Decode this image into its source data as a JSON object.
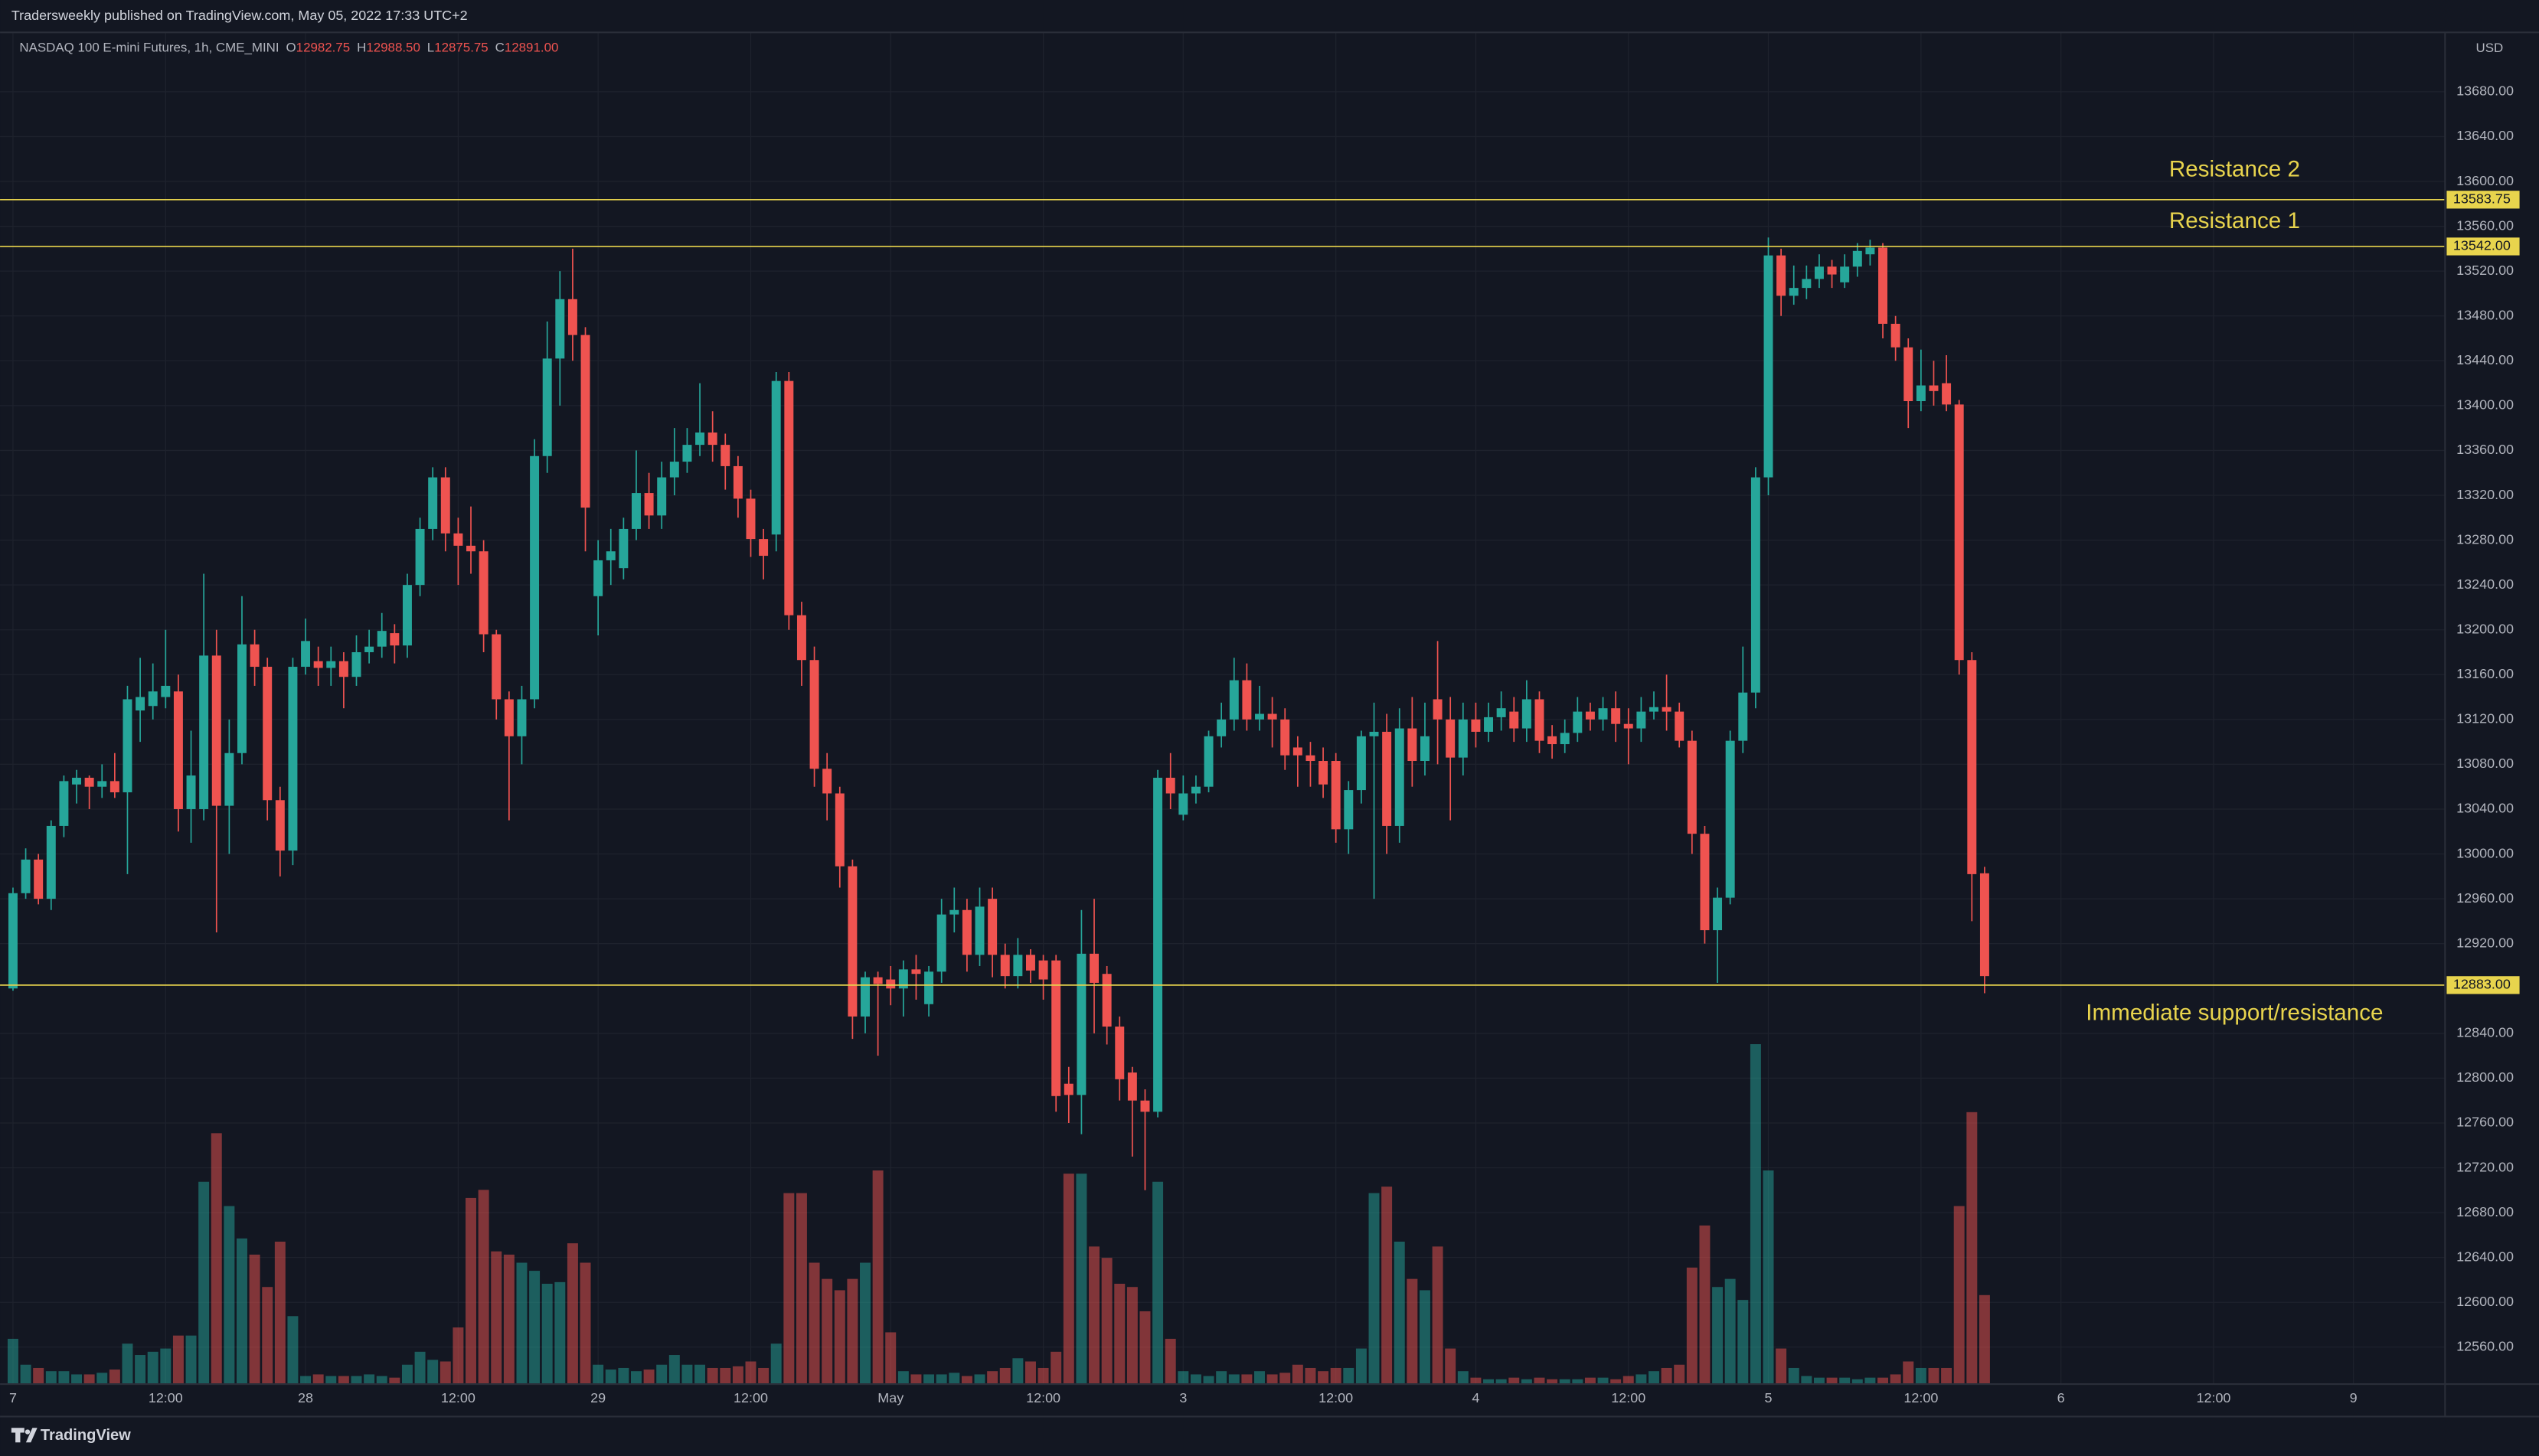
{
  "header": {
    "publisher": "Tradersweekly published on TradingView.com, May 05, 2022 17:33 UTC+2"
  },
  "footer": {
    "brand": "TradingView"
  },
  "chart_data": {
    "type": "candlestick",
    "legend": {
      "symbol": "NASDAQ 100 E-mini Futures, 1h, CME_MINI",
      "o_key": "O",
      "o": "12982.75",
      "h_key": "H",
      "h": "12988.50",
      "l_key": "L",
      "l": "12875.75",
      "c_key": "C",
      "c": "12891.00"
    },
    "currency": "USD",
    "up_color": "#26a69a",
    "down_color": "#ef5350",
    "ylim": [
      12527,
      13733
    ],
    "yticks": [
      {
        "value": 12560,
        "label": "12560.00"
      },
      {
        "value": 12600,
        "label": "12600.00"
      },
      {
        "value": 12640,
        "label": "12640.00"
      },
      {
        "value": 12680,
        "label": "12680.00"
      },
      {
        "value": 12720,
        "label": "12720.00"
      },
      {
        "value": 12760,
        "label": "12760.00"
      },
      {
        "value": 12800,
        "label": "12800.00"
      },
      {
        "value": 12840,
        "label": "12840.00"
      },
      {
        "value": 12920,
        "label": "12920.00"
      },
      {
        "value": 12960,
        "label": "12960.00"
      },
      {
        "value": 13000,
        "label": "13000.00"
      },
      {
        "value": 13040,
        "label": "13040.00"
      },
      {
        "value": 13080,
        "label": "13080.00"
      },
      {
        "value": 13120,
        "label": "13120.00"
      },
      {
        "value": 13160,
        "label": "13160.00"
      },
      {
        "value": 13200,
        "label": "13200.00"
      },
      {
        "value": 13240,
        "label": "13240.00"
      },
      {
        "value": 13280,
        "label": "13280.00"
      },
      {
        "value": 13320,
        "label": "13320.00"
      },
      {
        "value": 13360,
        "label": "13360.00"
      },
      {
        "value": 13400,
        "label": "13400.00"
      },
      {
        "value": 13440,
        "label": "13440.00"
      },
      {
        "value": 13480,
        "label": "13480.00"
      },
      {
        "value": 13520,
        "label": "13520.00"
      },
      {
        "value": 13560,
        "label": "13560.00"
      },
      {
        "value": 13600,
        "label": "13600.00"
      },
      {
        "value": 13640,
        "label": "13640.00"
      },
      {
        "value": 13680,
        "label": "13680.00"
      }
    ],
    "grid": true,
    "hlines": [
      {
        "value": 13583.75,
        "label": "13583.75",
        "text": "Resistance 2"
      },
      {
        "value": 13542,
        "label": "13542.00",
        "text": "Resistance 1"
      },
      {
        "value": 12883,
        "label": "12883.00",
        "text": "Immediate support/resistance"
      }
    ],
    "hline_color": "#e8d44d",
    "categories": [
      "7",
      null,
      null,
      null,
      null,
      null,
      null,
      null,
      null,
      null,
      null,
      null,
      "12:00",
      null,
      null,
      null,
      null,
      null,
      null,
      null,
      null,
      null,
      null,
      "28",
      null,
      null,
      null,
      null,
      null,
      null,
      null,
      null,
      null,
      null,
      null,
      "12:00",
      null,
      null,
      null,
      null,
      null,
      null,
      null,
      null,
      null,
      null,
      "29",
      null,
      null,
      null,
      null,
      null,
      null,
      null,
      null,
      null,
      null,
      null,
      "12:00",
      null,
      null,
      null,
      null,
      null,
      null,
      null,
      null,
      null,
      null,
      "May",
      null,
      null,
      null,
      null,
      null,
      null,
      null,
      null,
      null,
      null,
      null,
      "12:00",
      null,
      null,
      null,
      null,
      null,
      null,
      null,
      null,
      null,
      null,
      "3",
      null,
      null,
      null,
      null,
      null,
      null,
      null,
      null,
      null,
      null,
      null,
      "12:00",
      null,
      null,
      null,
      null,
      null,
      null,
      null,
      null,
      null,
      null,
      "4",
      null,
      null,
      null,
      null,
      null,
      null,
      null,
      null,
      null,
      null,
      null,
      "12:00",
      null,
      null,
      null,
      null,
      null,
      null,
      null,
      null,
      null,
      null,
      "5",
      null,
      null,
      null,
      null,
      null,
      null,
      null,
      null,
      null,
      null,
      null,
      "12:00",
      null,
      null,
      null,
      null,
      null,
      null,
      null,
      null,
      null,
      null,
      "6",
      null,
      null,
      null,
      null,
      null,
      null,
      null,
      null,
      null,
      null,
      null,
      "12:00",
      null,
      null,
      null,
      null,
      null,
      null,
      null,
      null,
      null,
      null,
      "9",
      null,
      null,
      null,
      null,
      null,
      null,
      null
    ],
    "open": [
      12880,
      12965,
      12995,
      12960,
      13025,
      13062,
      13068,
      13060,
      13065,
      13055,
      13128,
      13132,
      13140,
      13145,
      13040,
      13040,
      13177,
      13043,
      13090,
      13187,
      13167,
      13048,
      13003,
      13167,
      13172,
      13166,
      13172,
      13158,
      13180,
      13185,
      13197,
      13186,
      13240,
      13290,
      13336,
      13286,
      13275,
      13270,
      13196,
      13138,
      13105,
      13138,
      13355,
      13442,
      13495,
      13463,
      13230,
      13262,
      13255,
      13290,
      13322,
      13302,
      13336,
      13350,
      13365,
      13376,
      13365,
      13346,
      13317,
      13281,
      13285,
      13422,
      13213,
      13173,
      13076,
      13054,
      12989,
      12855,
      12890,
      12888,
      12880,
      12897,
      12866,
      12895,
      12946,
      12950,
      12910,
      12960,
      12910,
      12891,
      12910,
      12905,
      12905,
      12795,
      12785,
      12911,
      12893,
      12846,
      12805,
      12780,
      12770,
      13068,
      13035,
      13054,
      13060,
      13105,
      13120,
      13155,
      13120,
      13125,
      13120,
      13095,
      13088,
      13083,
      13083,
      13022,
      13057,
      13105,
      13109,
      13025,
      13112,
      13083,
      13138,
      13120,
      13086,
      13120,
      13109,
      13122,
      13127,
      13112,
      13138,
      13105,
      13098,
      13108,
      13127,
      13120,
      13130,
      13116,
      13112,
      13127,
      13131,
      13127,
      13101,
      13018,
      12932,
      12961,
      13101,
      13144,
      13336,
      13534,
      13498,
      13505,
      13513,
      13524,
      13510,
      13524,
      13535,
      13541,
      13473,
      13452,
      13404,
      13418,
      13420,
      13401,
      13173,
      12982.75,
      null,
      null,
      null,
      null,
      null,
      null,
      null,
      null,
      null,
      null,
      null,
      null,
      null,
      null,
      null,
      null,
      null,
      null,
      null,
      null,
      null,
      null,
      null,
      null,
      null,
      null,
      null,
      null,
      null,
      null,
      null,
      null,
      null,
      null,
      null,
      null
    ],
    "high": [
      12970,
      13005,
      13000,
      13030,
      13070,
      13075,
      13070,
      13080,
      13090,
      13150,
      13175,
      13170,
      13200,
      13160,
      13110,
      13250,
      13200,
      13120,
      13230,
      13200,
      13175,
      13060,
      13175,
      13210,
      13185,
      13185,
      13180,
      13195,
      13200,
      13215,
      13205,
      13250,
      13300,
      13345,
      13345,
      13300,
      13310,
      13280,
      13200,
      13145,
      13150,
      13370,
      13475,
      13520,
      13540,
      13470,
      13280,
      13290,
      13300,
      13360,
      13340,
      13350,
      13380,
      13380,
      13420,
      13395,
      13375,
      13355,
      13325,
      13290,
      13430,
      13430,
      13225,
      13185,
      13090,
      13060,
      12995,
      12895,
      12895,
      12900,
      12905,
      12910,
      12900,
      12960,
      12970,
      12960,
      12970,
      12970,
      12920,
      12925,
      12915,
      12910,
      12910,
      12810,
      12950,
      12960,
      12900,
      12855,
      12810,
      12790,
      13075,
      13090,
      13070,
      13070,
      13110,
      13135,
      13175,
      13170,
      13150,
      13140,
      13130,
      13105,
      13100,
      13095,
      13090,
      13065,
      13110,
      13135,
      13125,
      13130,
      13140,
      13135,
      13190,
      13140,
      13135,
      13135,
      13135,
      13145,
      13140,
      13155,
      13145,
      13115,
      13120,
      13140,
      13135,
      13140,
      13145,
      13130,
      13140,
      13145,
      13160,
      13135,
      13110,
      13025,
      12970,
      13110,
      13185,
      13345,
      13550,
      13540,
      13525,
      13525,
      13535,
      13530,
      13535,
      13545,
      13548,
      13545,
      13480,
      13460,
      13450,
      13440,
      13445,
      13405,
      13180,
      12988.5,
      null,
      null,
      null,
      null,
      null,
      null,
      null,
      null,
      null,
      null,
      null,
      null,
      null,
      null,
      null,
      null,
      null,
      null,
      null,
      null,
      null,
      null,
      null,
      null,
      null,
      null,
      null,
      null,
      null,
      null,
      null,
      null,
      null,
      null,
      null,
      null
    ],
    "low": [
      12878,
      12960,
      12955,
      12950,
      13015,
      13045,
      13040,
      13050,
      13050,
      12982,
      13100,
      13120,
      13130,
      13020,
      13010,
      13030,
      12930,
      13000,
      13080,
      13150,
      13030,
      12980,
      12990,
      13160,
      13150,
      13150,
      13130,
      13150,
      13170,
      13175,
      13170,
      13175,
      13230,
      13280,
      13270,
      13240,
      13250,
      13180,
      13120,
      13030,
      13080,
      13130,
      13340,
      13400,
      13440,
      13270,
      13195,
      13240,
      13245,
      13280,
      13290,
      13290,
      13320,
      13340,
      13355,
      13350,
      13325,
      13300,
      13265,
      13245,
      13270,
      13200,
      13150,
      13060,
      13030,
      12970,
      12835,
      12840,
      12820,
      12865,
      12855,
      12870,
      12855,
      12885,
      12930,
      12895,
      12900,
      12890,
      12880,
      12880,
      12885,
      12870,
      12770,
      12760,
      12750,
      12840,
      12830,
      12780,
      12730,
      12700,
      12765,
      13040,
      13030,
      13045,
      13055,
      13095,
      13110,
      13110,
      13110,
      13095,
      13075,
      13060,
      13060,
      13050,
      13010,
      13000,
      13045,
      12960,
      13000,
      13010,
      13060,
      13070,
      13080,
      13030,
      13070,
      13095,
      13100,
      13110,
      13100,
      13100,
      13090,
      13085,
      13090,
      13100,
      13110,
      13110,
      13100,
      13080,
      13100,
      13120,
      13110,
      13095,
      13000,
      12920,
      12885,
      12955,
      13090,
      13130,
      13320,
      13480,
      13490,
      13495,
      13505,
      13505,
      13505,
      13515,
      13525,
      13460,
      13440,
      13380,
      13395,
      13400,
      13395,
      13160,
      12940,
      12875.75,
      null,
      null,
      null,
      null,
      null,
      null,
      null,
      null,
      null,
      null,
      null,
      null,
      null,
      null,
      null,
      null,
      null,
      null,
      null,
      null,
      null,
      null,
      null,
      null,
      null,
      null,
      null,
      null,
      null,
      null,
      null,
      null,
      null,
      null,
      null,
      null
    ],
    "close": [
      12965,
      12995,
      12960,
      13025,
      13065,
      13068,
      13060,
      13065,
      13055,
      13138,
      13140,
      13145,
      13150,
      13040,
      13070,
      13177,
      13043,
      13090,
      13187,
      13167,
      13048,
      13003,
      13167,
      13190,
      13166,
      13172,
      13158,
      13180,
      13185,
      13199,
      13186,
      13240,
      13290,
      13336,
      13286,
      13275,
      13270,
      13196,
      13138,
      13105,
      13138,
      13355,
      13442,
      13495,
      13463,
      13309,
      13262,
      13270,
      13290,
      13322,
      13302,
      13336,
      13350,
      13365,
      13376,
      13365,
      13346,
      13317,
      13281,
      13266,
      13422,
      13213,
      13173,
      13076,
      13054,
      12989,
      12855,
      12890,
      12884,
      12880,
      12897,
      12893,
      12895,
      12946,
      12950,
      12910,
      12953,
      12910,
      12891,
      12910,
      12896,
      12888,
      12784,
      12785,
      12911,
      12885,
      12846,
      12799,
      12780,
      12770,
      13068,
      13054,
      13054,
      13060,
      13105,
      13120,
      13155,
      13120,
      13125,
      13120,
      13088,
      13088,
      13083,
      13062,
      13022,
      13057,
      13105,
      13109,
      13025,
      13112,
      13083,
      13105,
      13120,
      13086,
      13120,
      13109,
      13122,
      13130,
      13112,
      13138,
      13101,
      13098,
      13108,
      13127,
      13120,
      13130,
      13116,
      13112,
      13127,
      13131,
      13127,
      13101,
      13018,
      12932,
      12961,
      13101,
      13144,
      13336,
      13534,
      13498,
      13505,
      13513,
      13524,
      13517,
      13524,
      13538,
      13541,
      13473,
      13452,
      13404,
      13418,
      13413,
      13401,
      13173,
      12982,
      12891,
      null,
      null,
      null,
      null,
      null,
      null,
      null,
      null,
      null,
      null,
      null,
      null,
      null,
      null,
      null,
      null,
      null,
      null,
      null,
      null,
      null,
      null,
      null,
      null,
      null,
      null,
      null,
      null,
      null,
      null,
      null,
      null,
      null,
      null,
      null,
      null
    ],
    "volume": [
      28,
      12,
      10,
      8,
      8,
      6,
      6,
      7,
      9,
      25,
      18,
      20,
      22,
      30,
      30,
      125,
      155,
      110,
      90,
      80,
      60,
      88,
      42,
      5,
      6,
      5,
      5,
      5,
      6,
      5,
      4,
      12,
      20,
      15,
      14,
      35,
      115,
      120,
      82,
      80,
      75,
      70,
      62,
      63,
      87,
      75,
      12,
      9,
      10,
      8,
      9,
      12,
      18,
      12,
      12,
      10,
      10,
      11,
      14,
      10,
      25,
      118,
      118,
      75,
      65,
      58,
      65,
      75,
      132,
      32,
      8,
      6,
      6,
      6,
      7,
      5,
      6,
      8,
      10,
      16,
      14,
      10,
      20,
      130,
      130,
      85,
      78,
      62,
      60,
      45,
      125,
      28,
      8,
      6,
      5,
      8,
      6,
      6,
      8,
      6,
      7,
      12,
      10,
      8,
      10,
      10,
      22,
      118,
      122,
      88,
      65,
      58,
      85,
      22,
      8,
      4,
      3,
      3,
      4,
      3,
      4,
      3,
      3,
      3,
      4,
      4,
      3,
      5,
      6,
      8,
      10,
      12,
      72,
      98,
      60,
      65,
      52,
      210,
      132,
      22,
      10,
      5,
      4,
      4,
      4,
      3,
      4,
      4,
      6,
      14,
      10,
      10,
      10,
      110,
      168,
      55,
      null,
      null,
      null,
      null,
      null,
      null,
      null,
      null,
      null,
      null,
      null,
      null,
      null,
      null,
      null,
      null,
      null,
      null,
      null,
      null,
      null,
      null,
      null,
      null,
      null,
      null,
      null,
      null,
      null,
      null,
      null,
      null,
      null,
      null,
      null,
      null
    ]
  }
}
